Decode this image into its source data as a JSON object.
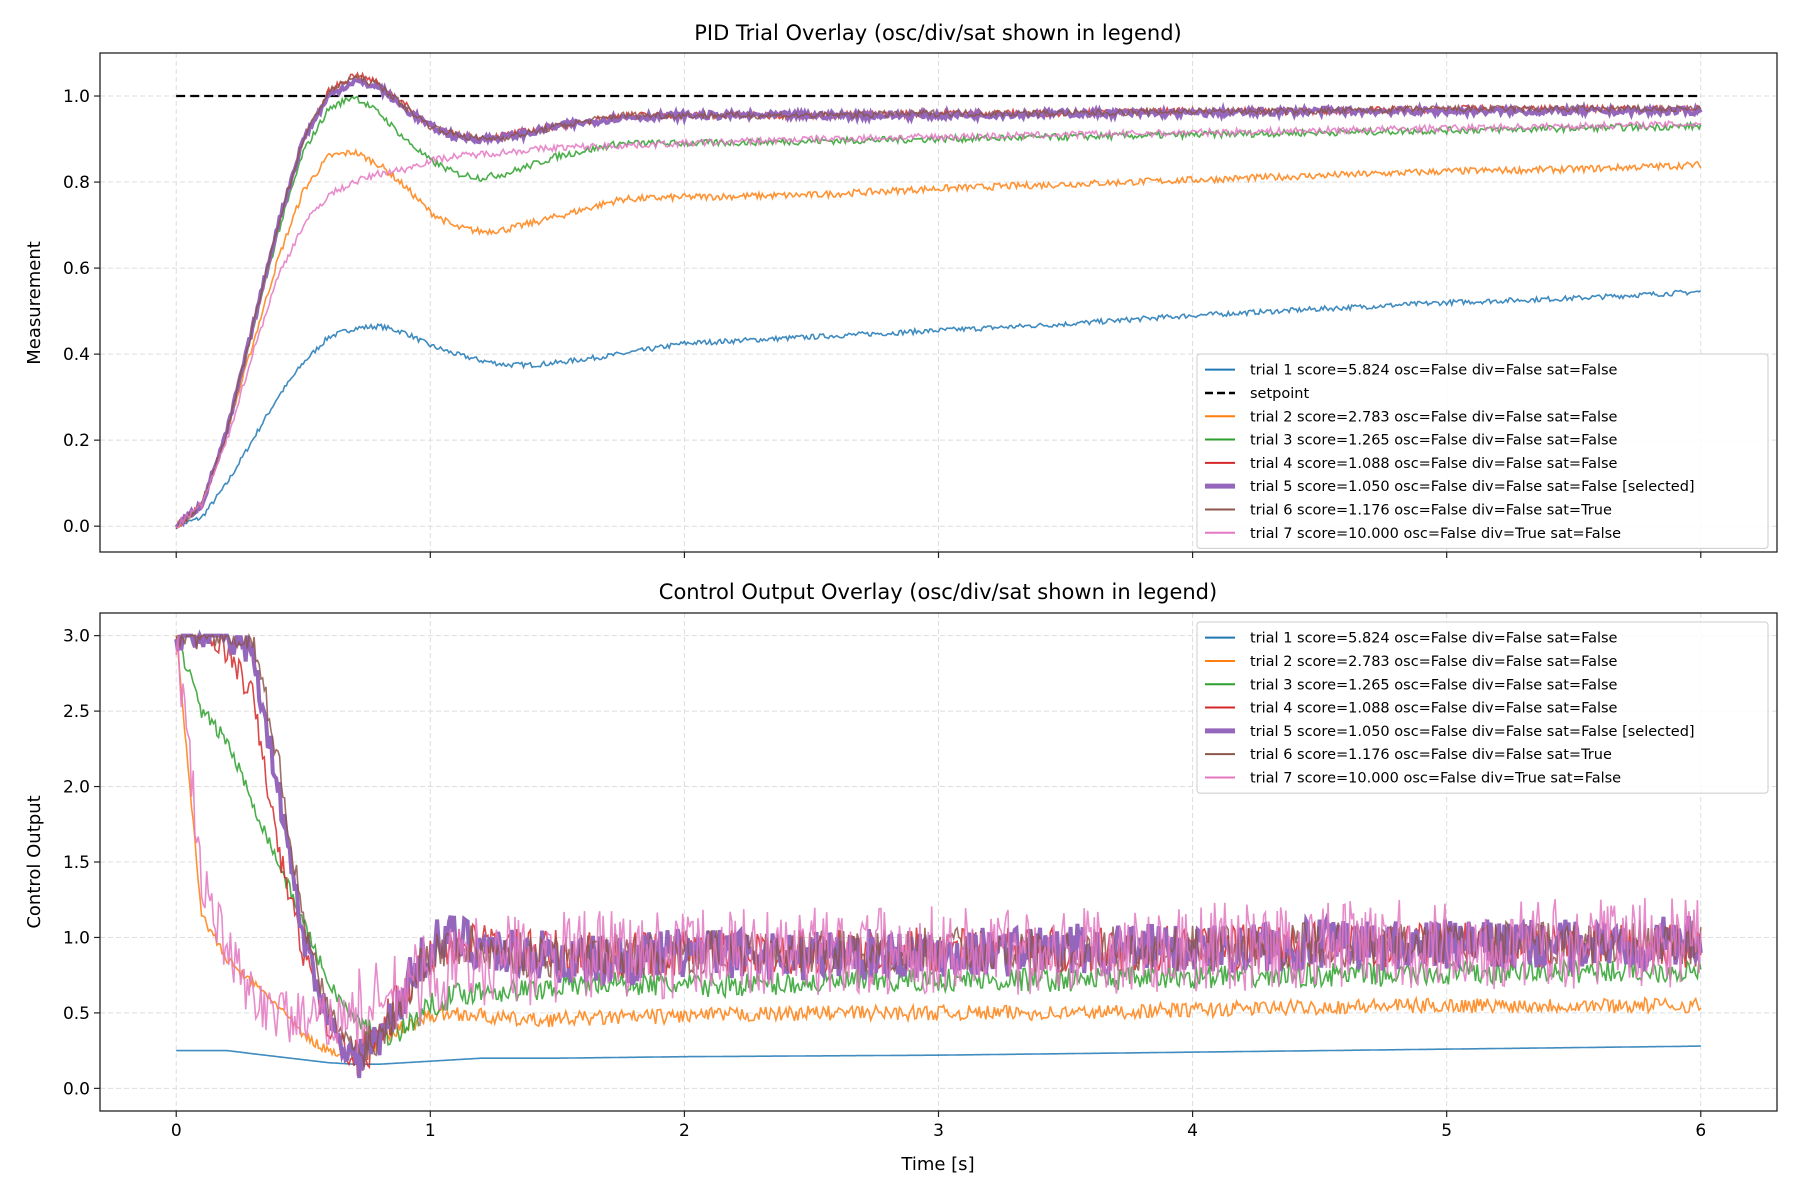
{
  "chart_data": [
    {
      "type": "line",
      "title": "PID Trial Overlay (osc/div/sat shown in legend)",
      "xlabel": "",
      "ylabel": "Measurement",
      "xlim": [
        -0.3,
        6.3
      ],
      "ylim": [
        -0.06,
        1.1
      ],
      "xticks": [
        0,
        1,
        2,
        3,
        4,
        5,
        6
      ],
      "yticks": [
        "0.0",
        "0.2",
        "0.4",
        "0.6",
        "0.8",
        "1.0"
      ],
      "grid": true,
      "legend_placement": "lower right",
      "x": [
        0,
        0.1,
        0.2,
        0.3,
        0.4,
        0.5,
        0.6,
        0.7,
        0.8,
        0.9,
        1.0,
        1.1,
        1.2,
        1.3,
        1.4,
        1.5,
        1.75,
        2,
        2.5,
        3,
        3.5,
        4,
        4.5,
        5,
        5.5,
        6
      ],
      "series": [
        {
          "name": "trial 1 score=5.824 osc=False div=False sat=False",
          "color": "#1f77b4",
          "values": [
            0,
            0.02,
            0.1,
            0.2,
            0.3,
            0.38,
            0.44,
            0.46,
            0.465,
            0.45,
            0.42,
            0.4,
            0.385,
            0.375,
            0.375,
            0.38,
            0.4,
            0.425,
            0.44,
            0.455,
            0.47,
            0.49,
            0.505,
            0.52,
            0.53,
            0.545
          ]
        },
        {
          "name": "setpoint",
          "color": "#000000",
          "dashed": true,
          "values": [
            1,
            1,
            1,
            1,
            1,
            1,
            1,
            1,
            1,
            1,
            1,
            1,
            1,
            1,
            1,
            1,
            1,
            1,
            1,
            1,
            1,
            1,
            1,
            1,
            1,
            1
          ]
        },
        {
          "name": "trial 2 score=2.783 osc=False div=False sat=False",
          "color": "#ff7f0e",
          "values": [
            0,
            0.05,
            0.22,
            0.42,
            0.62,
            0.78,
            0.86,
            0.87,
            0.84,
            0.79,
            0.73,
            0.695,
            0.685,
            0.69,
            0.705,
            0.72,
            0.76,
            0.765,
            0.77,
            0.785,
            0.795,
            0.805,
            0.815,
            0.825,
            0.83,
            0.84
          ]
        },
        {
          "name": "trial 3 score=1.265 osc=False div=False sat=False",
          "color": "#2ca02c",
          "values": [
            0,
            0.05,
            0.22,
            0.45,
            0.68,
            0.87,
            0.97,
            1.0,
            0.96,
            0.9,
            0.85,
            0.82,
            0.81,
            0.82,
            0.84,
            0.86,
            0.89,
            0.89,
            0.895,
            0.9,
            0.905,
            0.91,
            0.915,
            0.92,
            0.925,
            0.93
          ]
        },
        {
          "name": "trial 4 score=1.088 osc=False div=False sat=False",
          "color": "#d62728",
          "values": [
            0,
            0.05,
            0.22,
            0.46,
            0.7,
            0.9,
            1.01,
            1.05,
            1.03,
            0.98,
            0.93,
            0.91,
            0.9,
            0.91,
            0.92,
            0.93,
            0.955,
            0.955,
            0.955,
            0.96,
            0.96,
            0.965,
            0.965,
            0.97,
            0.97,
            0.97
          ]
        },
        {
          "name": "trial 5 score=1.050 osc=False div=False sat=False [selected]",
          "color": "#9467bd",
          "selected": true,
          "values": [
            0,
            0.05,
            0.22,
            0.46,
            0.7,
            0.9,
            1.0,
            1.035,
            1.02,
            0.97,
            0.93,
            0.905,
            0.9,
            0.905,
            0.915,
            0.93,
            0.95,
            0.955,
            0.955,
            0.955,
            0.96,
            0.96,
            0.965,
            0.965,
            0.965,
            0.965
          ]
        },
        {
          "name": "trial 6 score=1.176 osc=False div=False sat=True",
          "color": "#8c564b",
          "values": [
            0,
            0.05,
            0.22,
            0.46,
            0.7,
            0.9,
            1.01,
            1.045,
            1.025,
            0.975,
            0.93,
            0.91,
            0.9,
            0.905,
            0.915,
            0.93,
            0.955,
            0.955,
            0.955,
            0.96,
            0.96,
            0.965,
            0.965,
            0.97,
            0.97,
            0.97
          ]
        },
        {
          "name": "trial 7 score=10.000 osc=False div=True sat=False",
          "color": "#e377c2",
          "values": [
            0,
            0.05,
            0.2,
            0.4,
            0.58,
            0.7,
            0.77,
            0.8,
            0.82,
            0.83,
            0.85,
            0.86,
            0.865,
            0.87,
            0.875,
            0.88,
            0.885,
            0.89,
            0.9,
            0.905,
            0.91,
            0.915,
            0.92,
            0.925,
            0.93,
            0.935
          ]
        }
      ]
    },
    {
      "type": "line",
      "title": "Control Output Overlay (osc/div/sat shown in legend)",
      "xlabel": "Time [s]",
      "ylabel": "Control Output",
      "xlim": [
        -0.3,
        6.3
      ],
      "ylim": [
        -0.15,
        3.15
      ],
      "xticks": [
        0,
        1,
        2,
        3,
        4,
        5,
        6
      ],
      "yticks": [
        "0.0",
        "0.5",
        "1.0",
        "1.5",
        "2.0",
        "2.5",
        "3.0"
      ],
      "grid": true,
      "legend_placement": "upper right",
      "x": [
        0,
        0.1,
        0.2,
        0.3,
        0.4,
        0.5,
        0.6,
        0.7,
        0.8,
        0.9,
        1.0,
        1.1,
        1.2,
        1.3,
        1.4,
        1.5,
        1.75,
        2,
        2.5,
        3,
        3.5,
        4,
        4.5,
        5,
        5.5,
        6
      ],
      "series": [
        {
          "name": "trial 1 score=5.824 osc=False div=False sat=False",
          "color": "#1f77b4",
          "noise": 0,
          "values": [
            0.25,
            0.25,
            0.25,
            0.23,
            0.21,
            0.19,
            0.17,
            0.16,
            0.16,
            0.17,
            0.18,
            0.19,
            0.2,
            0.2,
            0.2,
            0.2,
            0.205,
            0.21,
            0.215,
            0.22,
            0.23,
            0.24,
            0.25,
            0.26,
            0.27,
            0.28
          ]
        },
        {
          "name": "trial 2 score=2.783 osc=False div=False sat=False",
          "color": "#ff7f0e",
          "noise": 0.05,
          "values": [
            3.0,
            1.15,
            0.85,
            0.7,
            0.55,
            0.35,
            0.25,
            0.22,
            0.3,
            0.42,
            0.48,
            0.5,
            0.48,
            0.46,
            0.45,
            0.46,
            0.47,
            0.48,
            0.5,
            0.5,
            0.5,
            0.52,
            0.54,
            0.55,
            0.55,
            0.55
          ]
        },
        {
          "name": "trial 3 score=1.265 osc=False div=False sat=False",
          "color": "#2ca02c",
          "noise": 0.08,
          "values": [
            3.0,
            2.5,
            2.3,
            1.9,
            1.5,
            1.1,
            0.7,
            0.45,
            0.35,
            0.4,
            0.55,
            0.62,
            0.65,
            0.65,
            0.65,
            0.68,
            0.7,
            0.68,
            0.7,
            0.72,
            0.72,
            0.74,
            0.75,
            0.76,
            0.78,
            0.78
          ]
        },
        {
          "name": "trial 4 score=1.088 osc=False div=False sat=False",
          "color": "#d62728",
          "noise": 0.15,
          "values": [
            3,
            3,
            2.9,
            2.6,
            1.6,
            0.9,
            0.4,
            0.2,
            0.35,
            0.65,
            0.9,
            0.95,
            0.95,
            0.92,
            0.9,
            0.9,
            0.88,
            0.9,
            0.9,
            0.92,
            0.92,
            0.93,
            0.95,
            0.95,
            0.95,
            0.95
          ]
        },
        {
          "name": "trial 5 score=1.050 osc=False div=False sat=False [selected]",
          "color": "#9467bd",
          "selected": true,
          "noise": 0.17,
          "values": [
            3,
            3,
            3,
            2.9,
            2.0,
            1.0,
            0.45,
            0.2,
            0.3,
            0.65,
            0.95,
            1.0,
            0.95,
            0.9,
            0.9,
            0.85,
            0.85,
            0.9,
            0.88,
            0.9,
            0.92,
            0.93,
            0.95,
            0.95,
            0.95,
            0.98
          ]
        },
        {
          "name": "trial 6 score=1.176 osc=False div=False sat=True",
          "color": "#8c564b",
          "noise": 0.15,
          "values": [
            3,
            3,
            3,
            3,
            2.2,
            1.1,
            0.5,
            0.25,
            0.35,
            0.65,
            0.9,
            0.95,
            0.92,
            0.9,
            0.88,
            0.88,
            0.88,
            0.9,
            0.9,
            0.92,
            0.92,
            0.93,
            0.95,
            0.95,
            0.96,
            0.97
          ]
        },
        {
          "name": "trial 7 score=10.000 osc=False div=True sat=False",
          "color": "#e377c2",
          "noise": 0.3,
          "values": [
            3.0,
            1.4,
            0.9,
            0.6,
            0.5,
            0.45,
            0.45,
            0.5,
            0.55,
            0.65,
            0.75,
            0.8,
            0.85,
            0.85,
            0.85,
            0.87,
            0.88,
            0.9,
            0.9,
            0.92,
            0.92,
            0.93,
            0.95,
            0.95,
            0.96,
            0.97
          ]
        }
      ]
    }
  ]
}
